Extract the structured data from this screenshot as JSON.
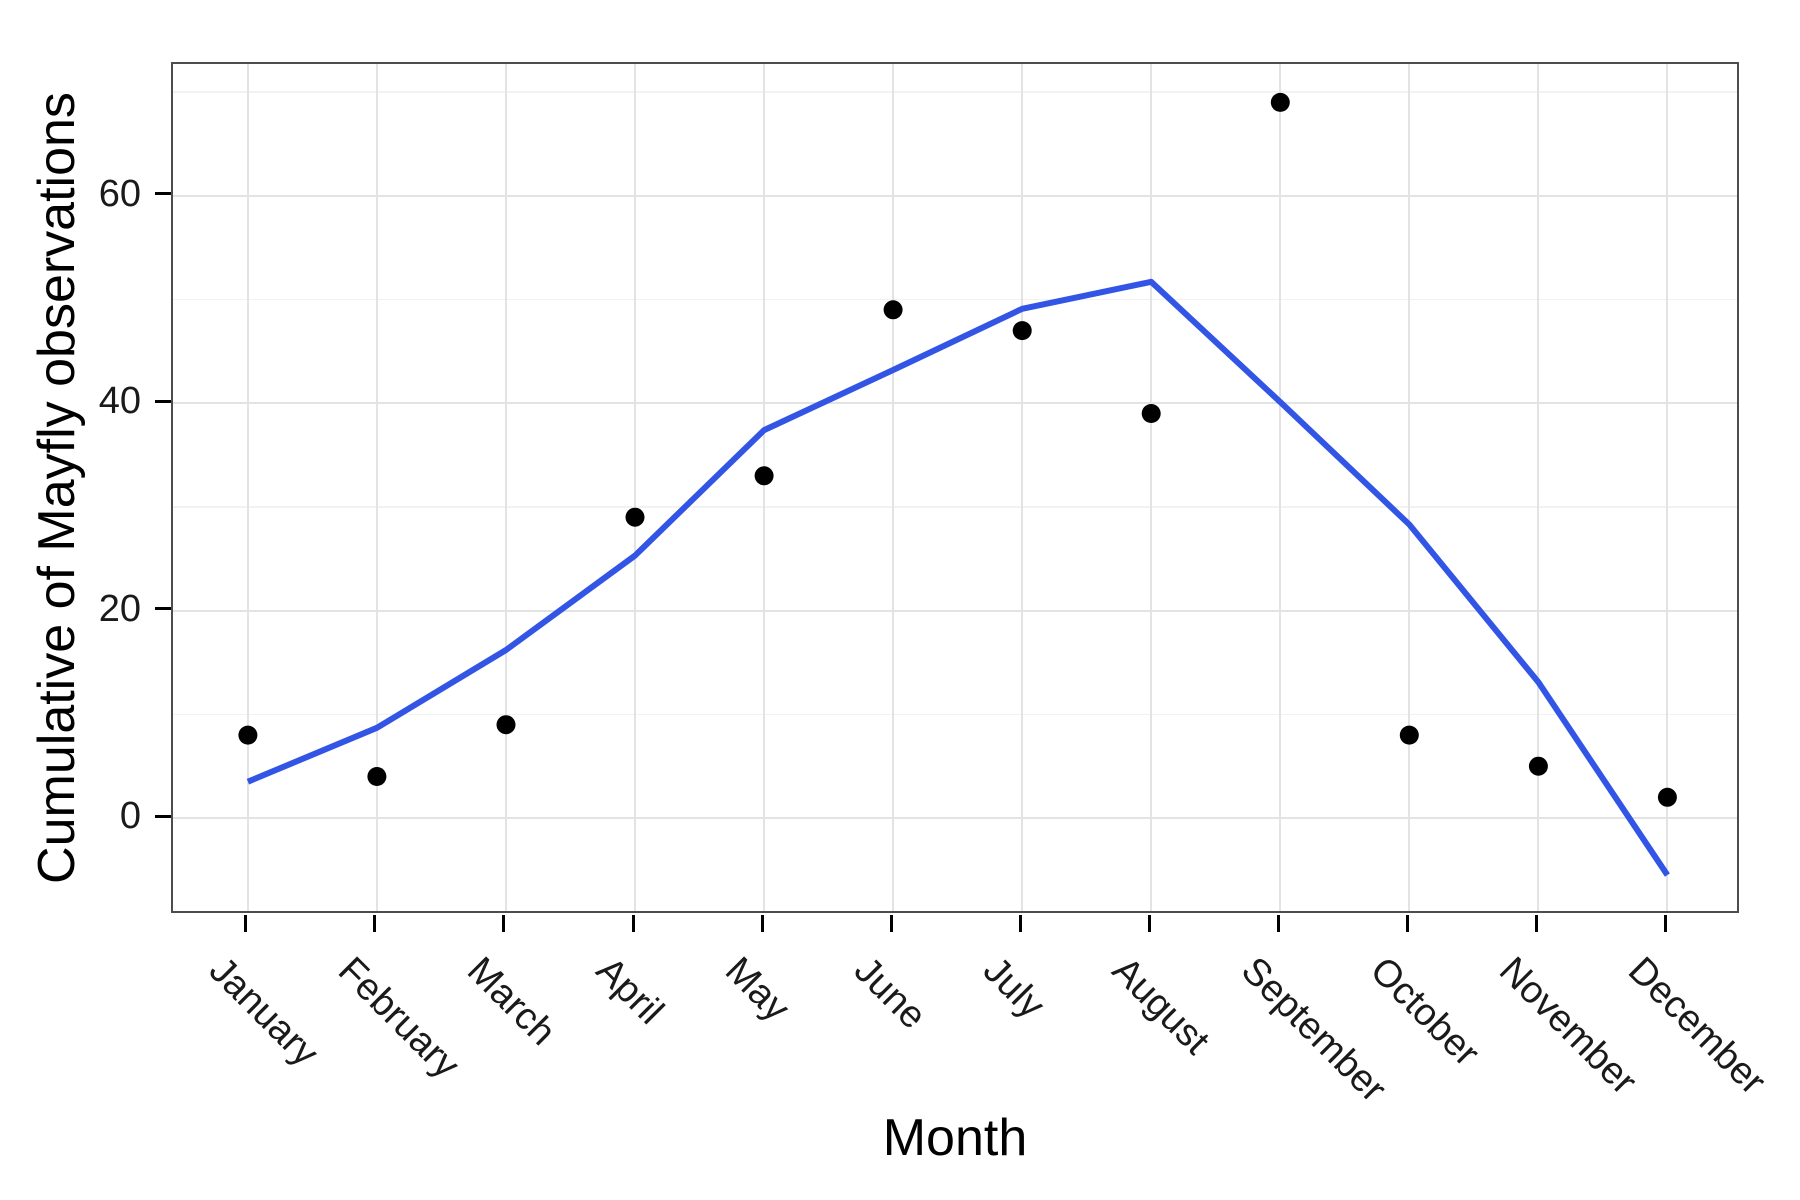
{
  "figure": {
    "background": "#ffffff"
  },
  "axes": {
    "x_title": "Month",
    "y_title": "Cumulative of Mayfly observations"
  },
  "chart_data": {
    "type": "scatter",
    "title": "",
    "xlabel": "Month",
    "ylabel": "Cumulative of Mayfly observations",
    "categories": [
      "January",
      "February",
      "March",
      "April",
      "May",
      "June",
      "July",
      "August",
      "September",
      "October",
      "November",
      "December"
    ],
    "series": [
      {
        "name": "mayfly-observations-points",
        "type": "scatter",
        "color": "#000000",
        "marker_radius": 9.5,
        "values": [
          8,
          4,
          9,
          29,
          33,
          49,
          47,
          39,
          69,
          8,
          5,
          2
        ]
      },
      {
        "name": "loess-smooth-line",
        "type": "line",
        "color": "#3355e6",
        "stroke_width": 6,
        "values": [
          3.5,
          8.7,
          16.2,
          25.3,
          37.4,
          43.2,
          49.1,
          51.7,
          40.1,
          28.3,
          13.1,
          -5.5
        ]
      }
    ],
    "ylim": [
      -9.35,
      72.7
    ],
    "xlim_category_units": [
      0.42,
      12.57
    ],
    "yticks": [
      0,
      20,
      40,
      60
    ],
    "yticks_minor": [
      10,
      30,
      50,
      70
    ],
    "grid": true,
    "legend": false,
    "colors": {
      "grid_major": "#e3e3e3",
      "grid_minor": "#f2f2f2",
      "panel_border": "#4d4d4d",
      "tick": "#000000",
      "text": "#1a1a1a"
    }
  }
}
